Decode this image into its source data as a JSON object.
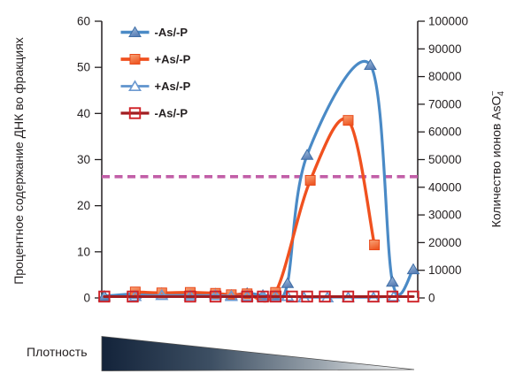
{
  "chart_data": {
    "type": "line",
    "title": "",
    "left_axis": {
      "label": "Процентное содержание ДНК во фракциях",
      "min": 0,
      "max": 60,
      "ticks": [
        0,
        10,
        20,
        30,
        40,
        50,
        60
      ]
    },
    "right_axis": {
      "label_base": "Количество ионов AsO",
      "label_sub": "4",
      "label_sup": "−",
      "min": 0,
      "max": 100000,
      "ticks": [
        0,
        10000,
        20000,
        30000,
        40000,
        50000,
        60000,
        70000,
        80000,
        90000,
        100000
      ]
    },
    "x_axis": {
      "label": "Плотность",
      "scale": "unlabeled density gradient, x given as percent of plot width (high density left)"
    },
    "reference_line": {
      "axis": "left",
      "value": 26.3,
      "style": "dashed",
      "color": "#c25fa8"
    },
    "legend": {
      "position": "top-left"
    },
    "series": [
      {
        "name": "-As/-P",
        "axis": "left",
        "marker": "triangle-filled",
        "line_color": "#4a8ac6",
        "marker_stroke": "#3f6ea6",
        "marker_fill_light": "#a6c3e2",
        "marker_fill_dark": "#5c80b6",
        "points": [
          [
            0.8,
            0.4
          ],
          [
            10.6,
            0.9
          ],
          [
            19,
            1.0
          ],
          [
            28,
            0.9
          ],
          [
            36,
            0.9
          ],
          [
            41,
            0.6
          ],
          [
            46,
            1.0
          ],
          [
            51,
            0.6
          ],
          [
            55,
            0.6
          ],
          [
            58.8,
            3.2
          ],
          [
            65,
            31
          ],
          [
            85,
            50.5
          ],
          [
            92,
            3.5
          ],
          [
            98.6,
            6.2
          ]
        ]
      },
      {
        "name": "+As/-P",
        "axis": "left",
        "marker": "square-filled",
        "line_color": "#f0511f",
        "marker_stroke": "#e8491a",
        "marker_fill_light": "#f9a478",
        "marker_fill_dark": "#ee5a26",
        "points": [
          [
            10.6,
            1.3
          ],
          [
            19,
            1.1
          ],
          [
            28,
            1.2
          ],
          [
            36,
            1.0
          ],
          [
            41,
            0.7
          ],
          [
            46,
            0.9
          ],
          [
            55,
            1.2
          ],
          [
            66,
            25.5
          ],
          [
            78,
            38.5
          ],
          [
            86.3,
            11.5
          ]
        ]
      },
      {
        "name": "+As/-P",
        "axis": "left",
        "marker": "triangle-open",
        "line_color": "#5e93cd",
        "marker_stroke": "#6d9ad1",
        "points": [
          [
            10.6,
            0.4
          ],
          [
            19,
            0.6
          ],
          [
            28,
            0.5
          ],
          [
            36,
            0.6
          ],
          [
            41,
            0.4
          ],
          [
            46,
            0.4
          ],
          [
            51,
            0.4
          ],
          [
            55,
            0.4
          ],
          [
            58.8,
            0.4
          ],
          [
            64,
            0.1
          ],
          [
            71.4,
            0.1
          ],
          [
            78,
            0.1
          ],
          [
            86,
            0.1
          ],
          [
            92.4,
            0.3
          ]
        ]
      },
      {
        "name": "-As/-P",
        "axis": "left",
        "marker": "square-open",
        "line_color": "#a01d20",
        "marker_stroke": "#cf2127",
        "points": [
          [
            0.8,
            0.3
          ],
          [
            9.8,
            0.3
          ],
          [
            28,
            0.3
          ],
          [
            36,
            0.3
          ],
          [
            46,
            0.3
          ],
          [
            51,
            0.3
          ],
          [
            55,
            0.3
          ],
          [
            60.2,
            0.3
          ],
          [
            65,
            0.3
          ],
          [
            70.6,
            0.3
          ],
          [
            78,
            0.3
          ],
          [
            86,
            0.3
          ],
          [
            92,
            0.3
          ],
          [
            98.6,
            0.3
          ]
        ]
      }
    ],
    "density_gradient": {
      "label": "Плотность",
      "from_color": "#13233a",
      "to_color": "#fbfbfb",
      "direction": "high density (dark, left) to low density (light, right)"
    }
  }
}
